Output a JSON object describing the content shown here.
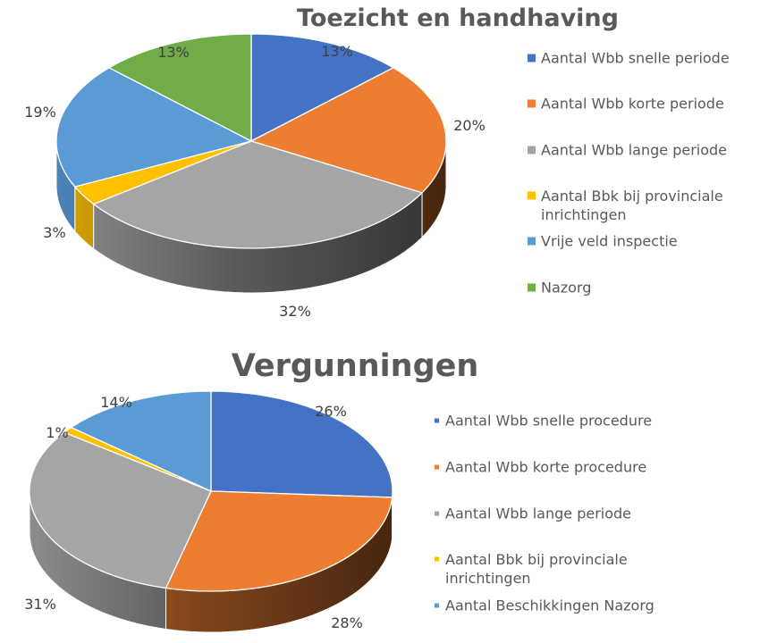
{
  "chart_data": [
    {
      "type": "pie",
      "title": "Toezicht en handhaving",
      "categories": [
        "Aantal Wbb snelle periode",
        "Aantal Wbb korte periode",
        "Aantal Wbb lange periode",
        "Aantal Bbk bij provinciale inrichtingen",
        "Vrije veld inspectie",
        "Nazorg"
      ],
      "values": [
        13,
        20,
        32,
        3,
        19,
        13
      ],
      "data_labels": [
        "13%",
        "20%",
        "32%",
        "3%",
        "19%",
        "13%"
      ],
      "colors": [
        "#4472C4",
        "#ED7D31",
        "#A5A5A5",
        "#FFC000",
        "#5B9BD5",
        "#70AD47"
      ],
      "legend_position": "right",
      "style": "3d"
    },
    {
      "type": "pie",
      "title": "Vergunningen",
      "categories": [
        "Aantal Wbb snelle procedure",
        "Aantal Wbb korte procedure",
        "Aantal Wbb lange periode",
        "Aantal Bbk bij provinciale inrichtingen",
        "Aantal Beschikkingen Nazorg"
      ],
      "values": [
        26,
        28,
        31,
        1,
        14
      ],
      "data_labels": [
        "26%",
        "28%",
        "31%",
        "1%",
        "14%"
      ],
      "colors": [
        "#4472C4",
        "#ED7D31",
        "#A5A5A5",
        "#FFC000",
        "#5B9BD5"
      ],
      "legend_position": "right",
      "style": "3d"
    }
  ]
}
